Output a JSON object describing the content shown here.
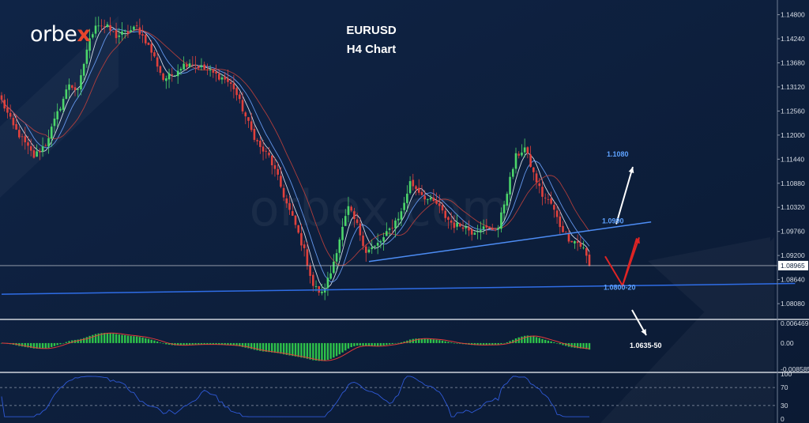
{
  "brand": {
    "text": "orbe",
    "accent": "x"
  },
  "header": {
    "title": "EURUSD",
    "subtitle": "H4 Chart"
  },
  "colors": {
    "background": "#0d1f3b",
    "bull": "#4cd66a",
    "bear": "#e0413c",
    "trendline": "#4d8df5",
    "support": "#2f6de6",
    "price_line": "#c8ccd4",
    "arrow_up": "#ffffff",
    "arrow_down": "#e02424",
    "macd_hist": "#2ec24a",
    "macd_signal": "#e33b3b",
    "rsi_line": "#2f59d6"
  },
  "chart_data": [
    {
      "type": "candlestick",
      "title": "EURUSD",
      "subtitle": "H4 Chart",
      "y_ticks": [
        "1.14800",
        "1.14240",
        "1.13680",
        "1.13120",
        "1.12560",
        "1.12000",
        "1.11440",
        "1.10880",
        "1.10320",
        "1.09760",
        "1.09200",
        "1.08640",
        "1.08080"
      ],
      "ylim": [
        1.0775,
        1.1505
      ],
      "current_price": "1.08965",
      "close_path": [
        [
          0,
          1.128
        ],
        [
          4,
          1.122
        ],
        [
          8,
          1.118
        ],
        [
          11,
          1.115
        ],
        [
          15,
          1.118
        ],
        [
          19,
          1.125
        ],
        [
          23,
          1.132
        ],
        [
          26,
          1.13
        ],
        [
          29,
          1.14
        ],
        [
          32,
          1.146
        ],
        [
          36,
          1.145
        ],
        [
          39,
          1.143
        ],
        [
          43,
          1.144
        ],
        [
          46,
          1.145
        ],
        [
          49,
          1.142
        ],
        [
          52,
          1.138
        ],
        [
          55,
          1.133
        ],
        [
          58,
          1.134
        ],
        [
          61,
          1.136
        ],
        [
          64,
          1.137
        ],
        [
          67,
          1.136
        ],
        [
          70,
          1.135
        ],
        [
          73,
          1.134
        ],
        [
          76,
          1.133
        ],
        [
          79,
          1.131
        ],
        [
          82,
          1.126
        ],
        [
          85,
          1.121
        ],
        [
          88,
          1.117
        ],
        [
          91,
          1.115
        ],
        [
          94,
          1.11
        ],
        [
          97,
          1.104
        ],
        [
          100,
          1.099
        ],
        [
          103,
          1.093
        ],
        [
          106,
          1.085
        ],
        [
          109,
          1.083
        ],
        [
          112,
          1.088
        ],
        [
          115,
          1.096
        ],
        [
          118,
          1.103
        ],
        [
          121,
          1.099
        ],
        [
          124,
          1.093
        ],
        [
          127,
          1.094
        ],
        [
          130,
          1.096
        ],
        [
          133,
          1.099
        ],
        [
          136,
          1.102
        ],
        [
          139,
          1.109
        ],
        [
          142,
          1.107
        ],
        [
          145,
          1.105
        ],
        [
          148,
          1.104
        ],
        [
          151,
          1.101
        ],
        [
          154,
          1.099
        ],
        [
          157,
          1.099
        ],
        [
          160,
          1.0975
        ],
        [
          163,
          1.0985
        ],
        [
          166,
          1.098
        ],
        [
          169,
          1.0985
        ],
        [
          172,
          1.107
        ],
        [
          175,
          1.115
        ],
        [
          178,
          1.117
        ],
        [
          181,
          1.111
        ],
        [
          184,
          1.106
        ],
        [
          187,
          1.104
        ],
        [
          190,
          1.099
        ],
        [
          193,
          1.096
        ],
        [
          196,
          1.095
        ],
        [
          198,
          1.0935
        ],
        [
          200,
          1.09
        ]
      ],
      "annotations": [
        {
          "text": "1.1080",
          "price": 1.115
        },
        {
          "text": "1.0990",
          "price": 1.0995
        },
        {
          "text": "1.0800-20",
          "price": 1.084
        },
        {
          "text": "1.0635-50",
          "price": 1.0776
        }
      ],
      "trendlines": [
        {
          "name": "rising trendline",
          "from": [
            125,
            1.0906
          ],
          "to": [
            221,
            1.0998
          ]
        },
        {
          "name": "support",
          "from": [
            0,
            1.083
          ],
          "to": [
            270,
            1.0855
          ]
        }
      ]
    },
    {
      "type": "histogram",
      "name": "MACD",
      "y_ticks": [
        "0.006469",
        "0.00",
        "-0.008585"
      ],
      "ylim": [
        -0.0093,
        0.0072
      ],
      "signal_lag": 5
    },
    {
      "type": "line",
      "name": "RSI",
      "y_ticks": [
        "100",
        "70",
        "30",
        "0"
      ],
      "ylim": [
        0,
        100
      ],
      "levels": [
        70,
        30
      ]
    }
  ]
}
